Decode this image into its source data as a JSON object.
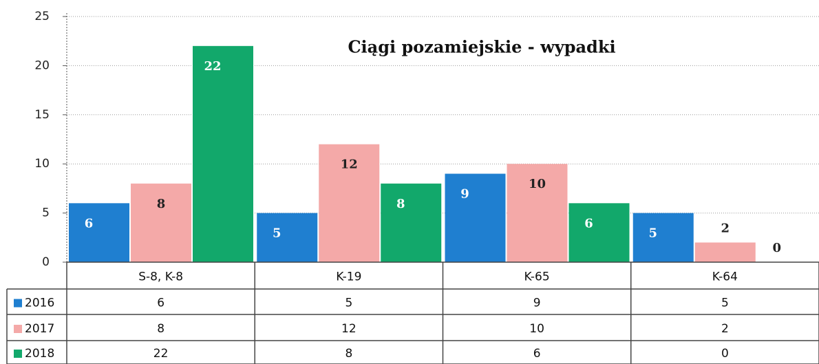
{
  "chart_data": {
    "type": "bar",
    "title": "Ciągi pozamiejskie - wypadki",
    "categories": [
      "S-8, K-8",
      "K-19",
      "K-65",
      "K-64"
    ],
    "series": [
      {
        "name": "2016",
        "color": "#1f7fd0",
        "values": [
          6,
          5,
          9,
          5
        ]
      },
      {
        "name": "2017",
        "color": "#f4a9a8",
        "values": [
          8,
          12,
          10,
          2
        ]
      },
      {
        "name": "2018",
        "color": "#12a86b",
        "values": [
          22,
          8,
          6,
          0
        ]
      }
    ],
    "ylim": [
      0,
      25
    ],
    "yticks": [
      0,
      5,
      10,
      15,
      20,
      25
    ],
    "grid": true
  }
}
